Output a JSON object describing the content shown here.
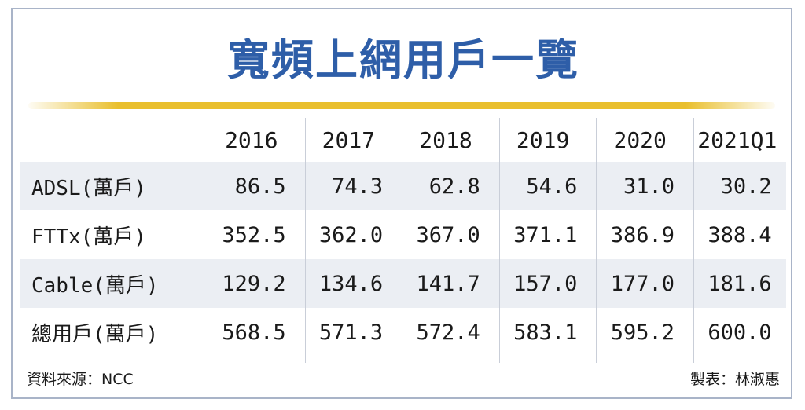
{
  "chart_data": {
    "type": "table",
    "title": "寬頻上網用戶一覽",
    "columns": [
      "2016",
      "2017",
      "2018",
      "2019",
      "2020",
      "2021Q1"
    ],
    "rows": [
      {
        "label": "ADSL(萬戶)",
        "values": [
          "86.5",
          "74.3",
          "62.8",
          "54.6",
          "31.0",
          "30.2"
        ]
      },
      {
        "label": "FTTx(萬戶)",
        "values": [
          "352.5",
          "362.0",
          "367.0",
          "371.1",
          "386.9",
          "388.4"
        ]
      },
      {
        "label": "Cable(萬戶)",
        "values": [
          "129.2",
          "134.6",
          "141.7",
          "157.0",
          "177.0",
          "181.6"
        ]
      },
      {
        "label": "總用戶(萬戶)",
        "values": [
          "568.5",
          "571.3",
          "572.4",
          "583.1",
          "595.2",
          "600.0"
        ]
      }
    ],
    "source": "資料來源：NCC",
    "credit": "製表：林淑惠"
  },
  "colors": {
    "title": "#2e5ea8",
    "rule": "#e9bf2d",
    "shade": "#ebeef3",
    "border": "#a9b4c8"
  }
}
